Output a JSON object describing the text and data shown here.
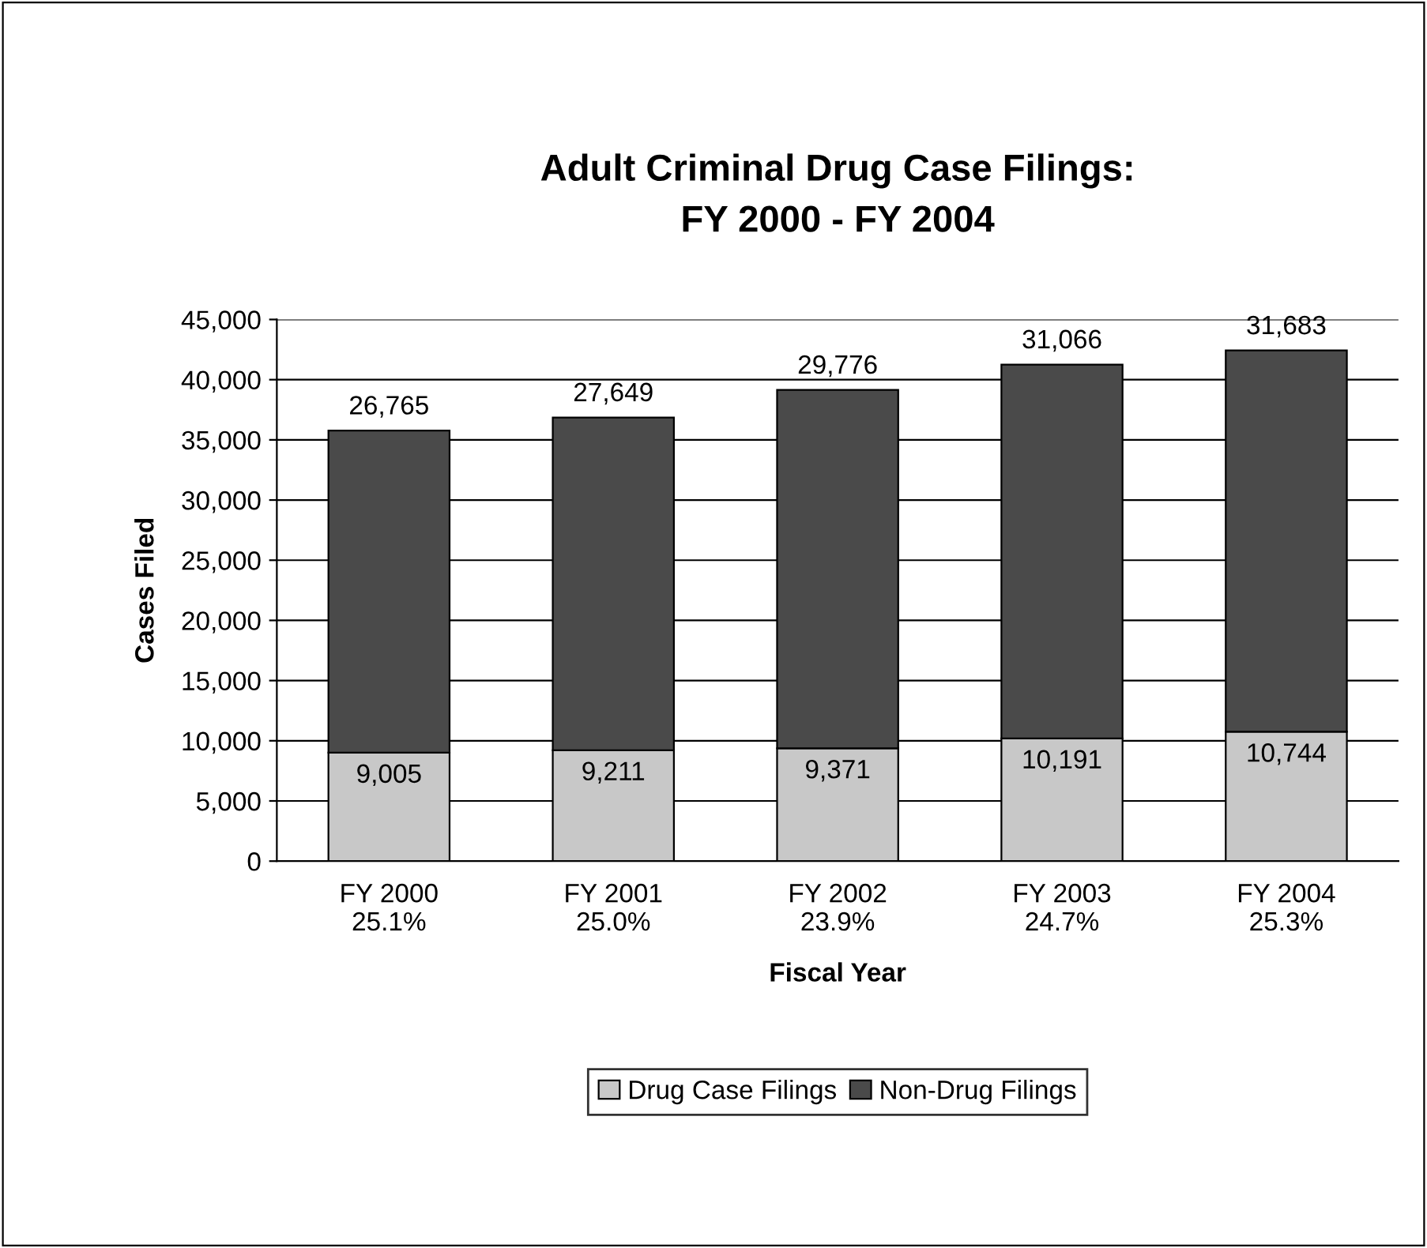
{
  "chart_data": {
    "type": "bar",
    "stacked": true,
    "title": "Adult Criminal Drug Case Filings:\nFY 2000 - FY 2004",
    "xlabel": "Fiscal Year",
    "ylabel": "Cases Filed",
    "categories": [
      "FY 2000\n25.1%",
      "FY 2001\n25.0%",
      "FY 2002\n23.9%",
      "FY 2003\n24.7%",
      "FY 2004\n25.3%"
    ],
    "series": [
      {
        "name": "Drug Case Filings",
        "color": "#c8c8c8",
        "values": [
          9005,
          9211,
          9371,
          10191,
          10744
        ],
        "value_labels": [
          "9,005",
          "9,211",
          "9,371",
          "10,191",
          "10,744"
        ]
      },
      {
        "name": "Non-Drug Filings",
        "color": "#4a4a4a",
        "values": [
          26765,
          27649,
          29776,
          31066,
          31683
        ],
        "value_labels": [
          "26,765",
          "27,649",
          "29,776",
          "31,066",
          "31,683"
        ]
      }
    ],
    "ylim": [
      0,
      45000
    ],
    "yticks": [
      0,
      {
        "value": 5000,
        "label": "5,000"
      },
      {
        "value": 10000,
        "label": "10,000"
      },
      {
        "value": 15000,
        "label": "15,000"
      },
      {
        "value": 20000,
        "label": "20,000"
      },
      {
        "value": 25000,
        "label": "25,000"
      },
      {
        "value": 30000,
        "label": "30,000"
      },
      {
        "value": 35000,
        "label": "35,000"
      },
      {
        "value": 40000,
        "label": "40,000"
      },
      {
        "value": 45000,
        "label": "45,000"
      }
    ],
    "grid": "y",
    "legend": "bottom"
  }
}
